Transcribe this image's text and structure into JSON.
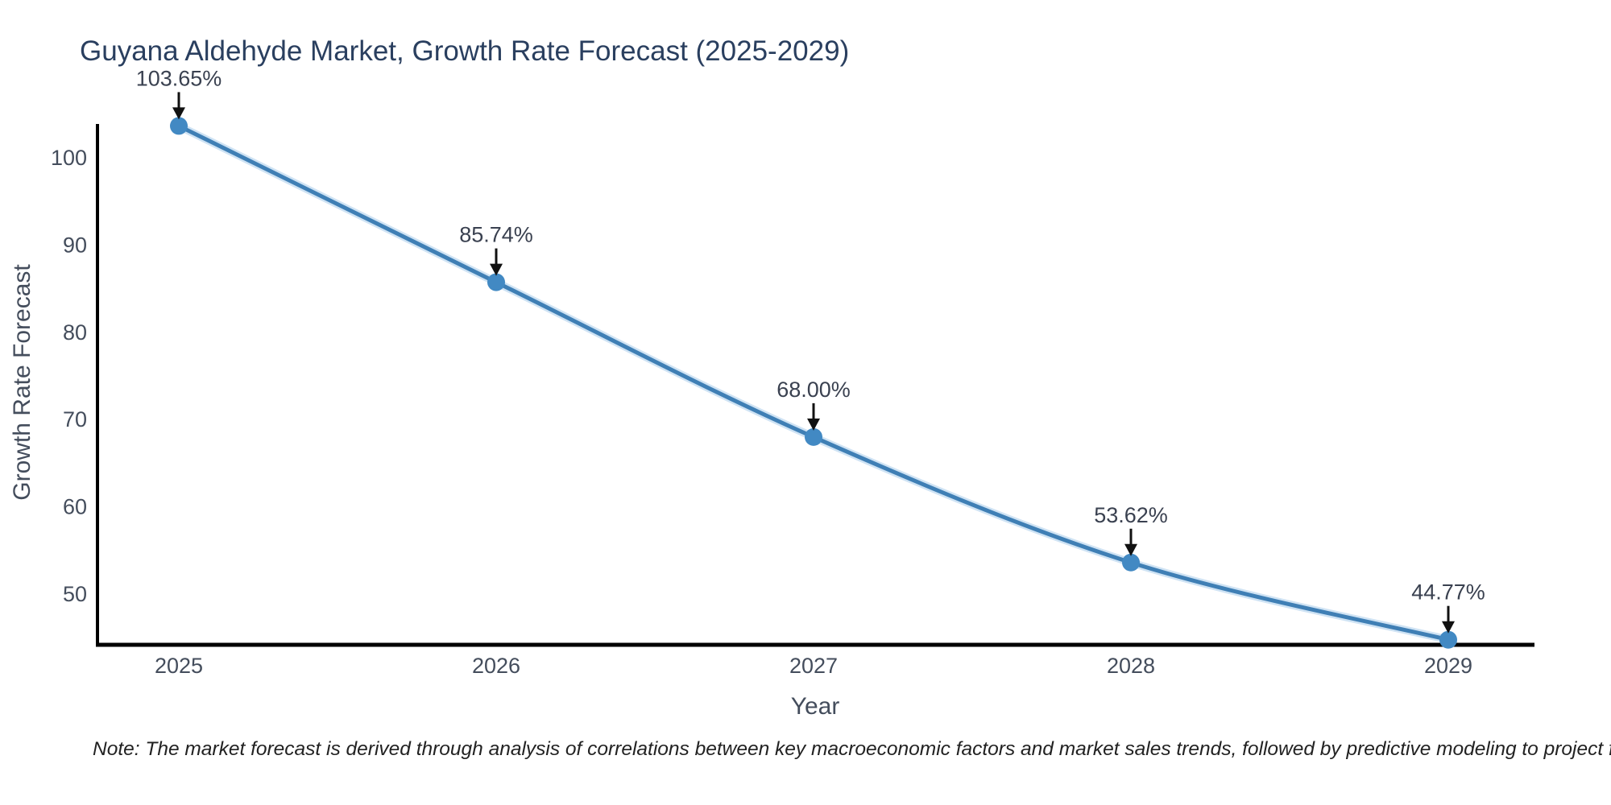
{
  "chart_data": {
    "type": "line",
    "title": "Guyana Aldehyde Market, Growth Rate Forecast (2025-2029)",
    "xlabel": "Year",
    "ylabel": "Growth Rate Forecast",
    "x": [
      2025,
      2026,
      2027,
      2028,
      2029
    ],
    "series": [
      {
        "name": "Growth Rate Forecast",
        "values": [
          103.65,
          85.74,
          68.0,
          53.62,
          44.77
        ]
      }
    ],
    "point_labels": [
      "103.65%",
      "85.74%",
      "68.00%",
      "53.62%",
      "44.77%"
    ],
    "yticks": [
      50,
      60,
      70,
      80,
      90,
      100
    ],
    "xticks": [
      2025,
      2026,
      2027,
      2028,
      2029
    ],
    "ylim": [
      44.3,
      103.7
    ],
    "grid": false,
    "legend": "none",
    "marker": "circle",
    "line_smooth": true,
    "annotation_arrows": true,
    "colors": {
      "line": "#3f7fb5",
      "line_halo": "#cfe3f4",
      "marker": "#4289c3",
      "arrow": "#111111",
      "axis": "#000000",
      "title": "#2a3f5f",
      "tick": "#444d5c",
      "annotation": "#3a4150",
      "note": "#222222",
      "background": "#ffffff"
    }
  },
  "note": "Note: The market forecast is derived through analysis of correlations between key macroeconomic factors and market sales trends, followed by predictive modeling to project future sales."
}
